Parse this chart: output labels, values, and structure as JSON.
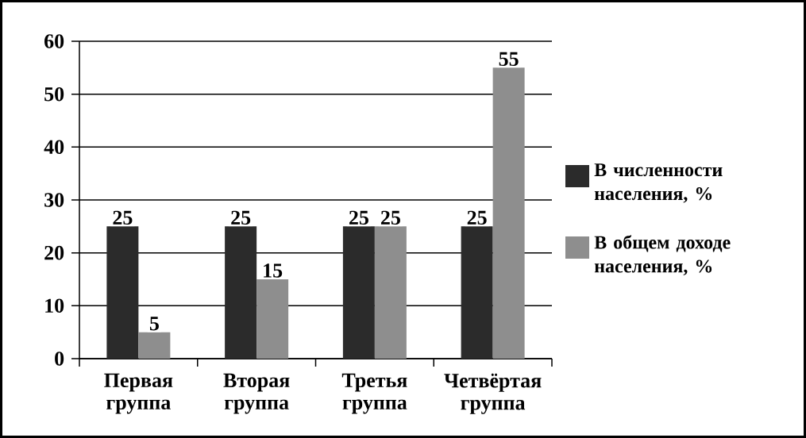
{
  "chart_data": {
    "type": "bar",
    "categories": [
      "Первая группа",
      "Вторая группа",
      "Третья группа",
      "Четвёртая группа"
    ],
    "series": [
      {
        "name": "В численности населения, %",
        "color": "#2b2b2b",
        "values": [
          25,
          25,
          25,
          25
        ]
      },
      {
        "name": "В общем доходе населения, %",
        "color": "#8e8e8e",
        "values": [
          5,
          15,
          25,
          55
        ]
      }
    ],
    "ylim": [
      0,
      60
    ],
    "yticks": [
      0,
      10,
      20,
      30,
      40,
      50,
      60
    ],
    "grid": "y",
    "legend": "right",
    "data_labels": true
  }
}
